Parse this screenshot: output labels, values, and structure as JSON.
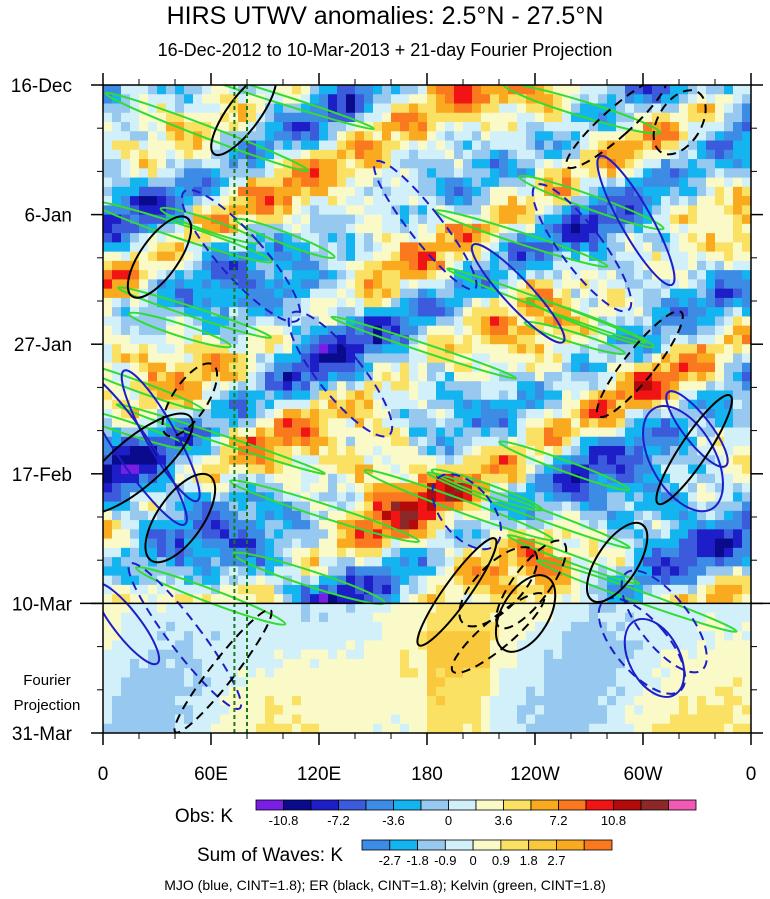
{
  "chart_data": {
    "type": "heatmap",
    "title": "HIRS UTWV anomalies: 2.5°N - 27.5°N",
    "subtitle": "16-Dec-2012 to 10-Mar-2013 + 21-day Fourier Projection",
    "x_ticks": [
      {
        "label": "0",
        "lon": 0
      },
      {
        "label": "60E",
        "lon": 60
      },
      {
        "label": "120E",
        "lon": 120
      },
      {
        "label": "180",
        "lon": 180
      },
      {
        "label": "120W",
        "lon": 240
      },
      {
        "label": "60W",
        "lon": 300
      },
      {
        "label": "0",
        "lon": 360
      }
    ],
    "xlim": [
      0,
      360
    ],
    "y_ticks": [
      {
        "label": "16-Dec",
        "day": 0
      },
      {
        "label": "6-Jan",
        "day": 21
      },
      {
        "label": "27-Jan",
        "day": 42
      },
      {
        "label": "17-Feb",
        "day": 63
      },
      {
        "label": "10-Mar",
        "day": 84
      },
      {
        "label": "31-Mar",
        "day": 105
      }
    ],
    "ylim_days": [
      0,
      105
    ],
    "observation_end_day": 84,
    "projection_label_line1": "Fourier",
    "projection_label_line2": "Projection",
    "reference_lines_lon": [
      73,
      80
    ],
    "obs_colorbar": {
      "label": "Obs: K",
      "colors": [
        "#7a1ee6",
        "#0a0a8c",
        "#1e1ec8",
        "#3c5adc",
        "#3c8ce6",
        "#14b4f0",
        "#96c8f0",
        "#d2f0fa",
        "#fafac8",
        "#fae164",
        "#faaa1e",
        "#fa781e",
        "#f01414",
        "#b40a0a",
        "#8c2828",
        "#f05ab4"
      ],
      "tick_labels": [
        "-10.8",
        "-7.2",
        "-3.6",
        "0",
        "3.6",
        "7.2",
        "10.8"
      ],
      "tick_values": [
        -10.8,
        -7.2,
        -3.6,
        0,
        3.6,
        7.2,
        10.8
      ],
      "range": [
        -12.6,
        16.2
      ]
    },
    "waves_colorbar": {
      "label": "Sum of Waves: K",
      "colors": [
        "#3c8ce6",
        "#14b4f0",
        "#96c8f0",
        "#d2f0fa",
        "#fafac8",
        "#fae164",
        "#fac83c",
        "#faaa1e",
        "#fa781e"
      ],
      "tick_labels": [
        "-2.7",
        "-1.8",
        "-0.9",
        "0",
        "0.9",
        "1.8",
        "2.7"
      ],
      "tick_values": [
        -2.7,
        -1.8,
        -0.9,
        0,
        0.9,
        1.8,
        2.7
      ],
      "range": [
        -3.6,
        4.5
      ]
    },
    "contour_legend": "MJO (blue, CINT=1.8); ER (black, CINT=1.8); Kelvin (green, CINT=1.8)",
    "contour_colors": {
      "mjo": "#1e1ec8",
      "er": "#000000",
      "kelvin": "#32dc32"
    }
  }
}
